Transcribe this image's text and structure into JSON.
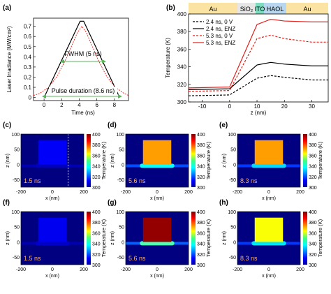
{
  "chart_data": [
    {
      "panel": "(a)",
      "type": "line",
      "ylabel": "Laser Irradiance (MW/cm²)",
      "xlabel": "Time (ns)",
      "xticks": [
        "0",
        "2",
        "4",
        "6",
        "8"
      ],
      "yticks": [
        "0",
        "0.1",
        "0.2",
        "0.3",
        "0.4",
        "0.5",
        "0.6",
        "0.7"
      ],
      "xlim": [
        -1.2,
        9.6
      ],
      "ylim": [
        -0.03,
        0.78
      ],
      "series": [
        {
          "style": "black-solid",
          "x": [
            0,
            4.1,
            4.5,
            8.6
          ],
          "y": [
            0,
            0.75,
            0.75,
            0
          ]
        },
        {
          "style": "red-dashed",
          "x": [
            -1.2,
            -0.5,
            0.5,
            1.5,
            2.5,
            3.2,
            3.8,
            4.3,
            4.8,
            5.4,
            6.1,
            7.1,
            8.1,
            9.1,
            9.6
          ],
          "y": [
            0.02,
            0.04,
            0.1,
            0.21,
            0.38,
            0.52,
            0.64,
            0.7,
            0.64,
            0.52,
            0.38,
            0.21,
            0.1,
            0.04,
            0.02
          ]
        }
      ],
      "annotations": {
        "fwhm": "FWHM (5 ns)",
        "pulse": "Pulse duration (8.6 ns)"
      }
    },
    {
      "panel": "(b)",
      "type": "line",
      "ylabel": "Temperature (K)",
      "xlabel": "z (nm)",
      "xticks": [
        "-10",
        "0",
        "10",
        "20",
        "30"
      ],
      "yticks": [
        "300",
        "320",
        "340",
        "360",
        "380",
        "400"
      ],
      "xlim": [
        -15,
        36
      ],
      "ylim": [
        300,
        400
      ],
      "layers": [
        "Au",
        "SiO₂",
        "ITO",
        "HAOL",
        "Au"
      ],
      "series": [
        {
          "name": "2.4 ns, 0 V",
          "color": "#000000",
          "dash": true,
          "x": [
            -15,
            0,
            10,
            15,
            20,
            30,
            36
          ],
          "y": [
            307,
            308,
            327,
            330,
            328,
            325,
            325
          ]
        },
        {
          "name": "2.4 ns, ENZ",
          "color": "#000000",
          "dash": false,
          "x": [
            -15,
            0,
            10,
            15,
            20,
            30,
            36
          ],
          "y": [
            314,
            315,
            342,
            345,
            343,
            341,
            341
          ]
        },
        {
          "name": "5.3 ns, 0 V",
          "color": "#e0201c",
          "dash": true,
          "x": [
            -15,
            0,
            10,
            15,
            20,
            30,
            36
          ],
          "y": [
            312,
            313,
            372,
            376,
            372,
            368,
            368
          ]
        },
        {
          "name": "5.3 ns, ENZ",
          "color": "#e0201c",
          "dash": false,
          "x": [
            -15,
            0,
            10,
            15,
            20,
            30,
            36
          ],
          "y": [
            316,
            317,
            388,
            394,
            392,
            391,
            391
          ]
        }
      ]
    },
    {
      "type": "heatmap",
      "xlabel": "x (nm)",
      "ylabel": "z (nm)",
      "xticks": [
        "-200",
        "0",
        "200"
      ],
      "yticks": [
        "100",
        "50",
        "0",
        "-50"
      ],
      "colorbar": {
        "label": "Temperature (K)",
        "ticks": [
          "400",
          "380",
          "360",
          "340",
          "320",
          "300"
        ],
        "range": [
          300,
          400
        ]
      },
      "panels": [
        {
          "label": "(c)",
          "time": "1.5 ns",
          "block_T": 312,
          "sub_T": 306,
          "under_T": 305,
          "dashed_line": true
        },
        {
          "label": "(d)",
          "time": "5.6 ns",
          "block_T": 372,
          "sub_T": 338,
          "under_T": 320,
          "dashed_line": false
        },
        {
          "label": "(e)",
          "time": "8.3 ns",
          "block_T": 372,
          "sub_T": 334,
          "under_T": 318,
          "dashed_line": false
        },
        {
          "label": "(f)",
          "time": "1.5 ns",
          "block_T": 311,
          "sub_T": 307,
          "under_T": 305,
          "dashed_line": false
        },
        {
          "label": "(g)",
          "time": "5.6 ns",
          "block_T": 398,
          "sub_T": 345,
          "under_T": 322,
          "dashed_line": false
        },
        {
          "label": "(h)",
          "time": "8.3 ns",
          "block_T": 362,
          "sub_T": 335,
          "under_T": 318,
          "dashed_line": false
        }
      ]
    }
  ]
}
